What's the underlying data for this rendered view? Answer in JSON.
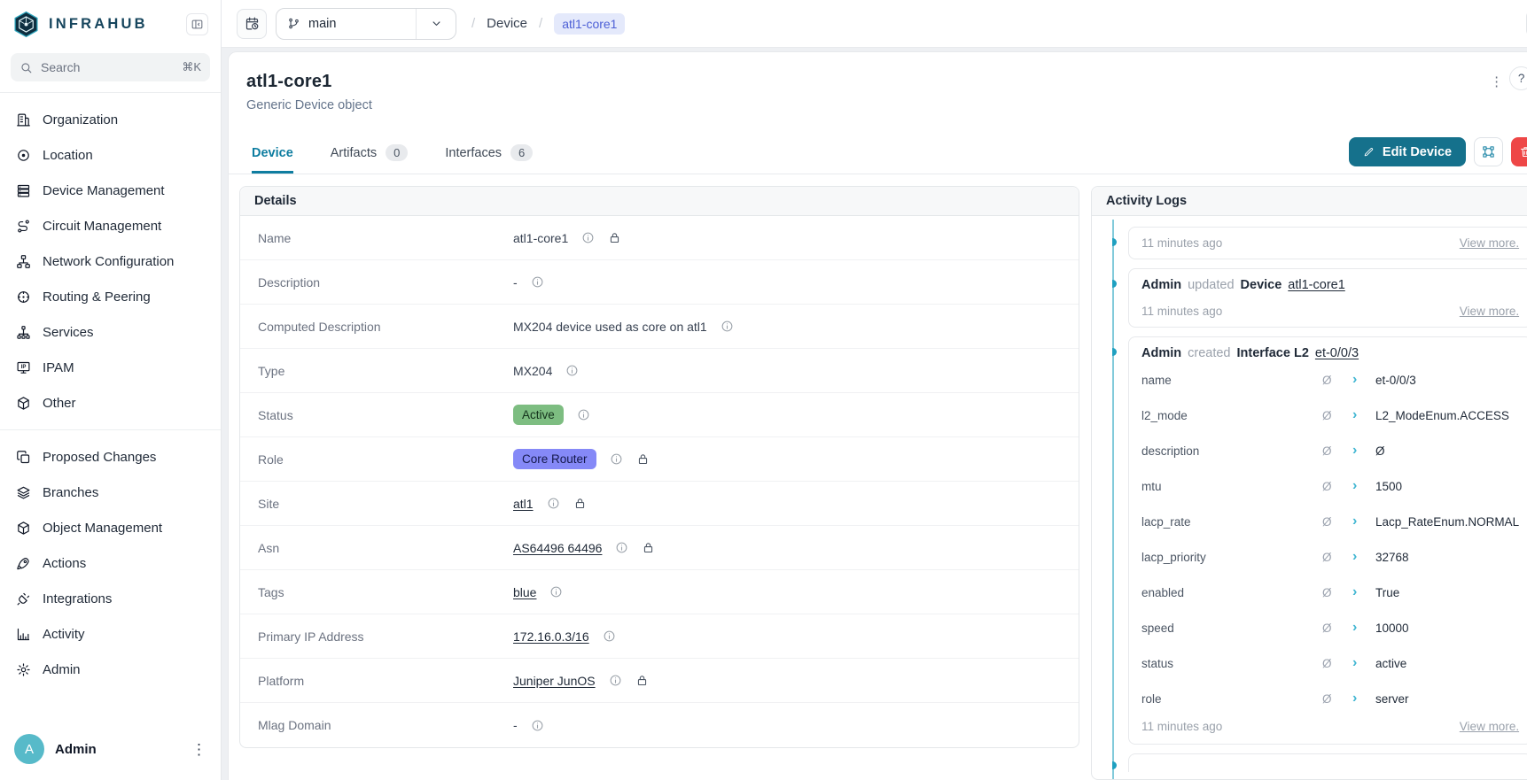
{
  "colors": {
    "brand_navy": "#17465e",
    "accent_teal": "#15718c",
    "tab_active": "#0e7da0",
    "timeline_line": "#82cada",
    "timeline_dot": "#1fa0c0",
    "chevron_teal": "#41b6d2",
    "badge_green": "#7dbd81",
    "badge_indigo": "#8589f7",
    "pill_bg": "#e4e9fb",
    "pill_text": "#4c5fd6",
    "delete_red": "#ee4747",
    "avatar_teal": "#57bac9"
  },
  "sidebar": {
    "logo_text": "INFRAHUB",
    "search": {
      "label": "Search",
      "shortcut": "⌘K"
    },
    "groups": [
      {
        "items": [
          {
            "icon": "building-icon",
            "label": "Organization"
          },
          {
            "icon": "location-icon",
            "label": "Location"
          },
          {
            "icon": "server-icon",
            "label": "Device Management"
          },
          {
            "icon": "route-icon",
            "label": "Circuit Management"
          },
          {
            "icon": "network-icon",
            "label": "Network Configuration"
          },
          {
            "icon": "globe-icon",
            "label": "Routing & Peering"
          },
          {
            "icon": "hierarchy-icon",
            "label": "Services"
          },
          {
            "icon": "ip-icon",
            "label": "IPAM"
          },
          {
            "icon": "cube-icon",
            "label": "Other"
          }
        ]
      },
      {
        "items": [
          {
            "icon": "copy-icon",
            "label": "Proposed Changes"
          },
          {
            "icon": "layers-icon",
            "label": "Branches"
          },
          {
            "icon": "box-icon",
            "label": "Object Management"
          },
          {
            "icon": "rocket-icon",
            "label": "Actions"
          },
          {
            "icon": "plug-icon",
            "label": "Integrations"
          },
          {
            "icon": "bar-chart-icon",
            "label": "Activity"
          },
          {
            "icon": "gear-icon",
            "label": "Admin"
          }
        ]
      }
    ],
    "user": {
      "initial": "A",
      "name": "Admin"
    }
  },
  "topbar": {
    "branch": "main",
    "breadcrumb": {
      "sep": "/",
      "items": [
        "Device",
        "atl1-core1"
      ]
    }
  },
  "page": {
    "title": "atl1-core1",
    "subtitle": "Generic Device object",
    "help_label": "?"
  },
  "tabs": [
    {
      "label": "Device",
      "active": true
    },
    {
      "label": "Artifacts",
      "badge": "0"
    },
    {
      "label": "Interfaces",
      "badge": "6"
    }
  ],
  "actions": {
    "edit_label": "Edit Device"
  },
  "details": {
    "title": "Details",
    "rows": [
      {
        "label": "Name",
        "value": "atl1-core1",
        "type": "text",
        "info": true,
        "lock": true
      },
      {
        "label": "Description",
        "value": "-",
        "type": "text",
        "info": true
      },
      {
        "label": "Computed Description",
        "value": "MX204 device used as core on atl1",
        "type": "text",
        "info": true
      },
      {
        "label": "Type",
        "value": "MX204",
        "type": "text",
        "info": true
      },
      {
        "label": "Status",
        "value": "Active",
        "type": "badge-green",
        "info": true
      },
      {
        "label": "Role",
        "value": "Core Router",
        "type": "badge-indigo",
        "info": true,
        "lock": true
      },
      {
        "label": "Site",
        "value": "atl1",
        "type": "link",
        "info": true,
        "lock": true
      },
      {
        "label": "Asn",
        "value": "AS64496 64496",
        "type": "link",
        "info": true,
        "lock": true
      },
      {
        "label": "Tags",
        "value": "blue",
        "type": "link",
        "info": true
      },
      {
        "label": "Primary IP Address",
        "value": "172.16.0.3/16",
        "type": "link",
        "info": true
      },
      {
        "label": "Platform",
        "value": "Juniper JunOS",
        "type": "link",
        "info": true,
        "lock": true
      },
      {
        "label": "Mlag Domain",
        "value": "-",
        "type": "text",
        "info": true
      }
    ]
  },
  "activity": {
    "title": "Activity Logs",
    "view_more": "View more.",
    "cards": [
      {
        "timestamp": "11 minutes ago"
      },
      {
        "actor": "Admin",
        "action": "updated",
        "object_type": "Device",
        "object_name": "atl1-core1",
        "timestamp": "11 minutes ago"
      },
      {
        "actor": "Admin",
        "action": "created",
        "object_type": "Interface L2",
        "object_name": "et-0/0/3",
        "timestamp": "11 minutes ago",
        "properties": [
          {
            "name": "name",
            "prev": "Ø",
            "value": "et-0/0/3"
          },
          {
            "name": "l2_mode",
            "prev": "Ø",
            "value": "L2_ModeEnum.ACCESS"
          },
          {
            "name": "description",
            "prev": "Ø",
            "value": "Ø"
          },
          {
            "name": "mtu",
            "prev": "Ø",
            "value": "1500"
          },
          {
            "name": "lacp_rate",
            "prev": "Ø",
            "value": "Lacp_RateEnum.NORMAL"
          },
          {
            "name": "lacp_priority",
            "prev": "Ø",
            "value": "32768"
          },
          {
            "name": "enabled",
            "prev": "Ø",
            "value": "True"
          },
          {
            "name": "speed",
            "prev": "Ø",
            "value": "10000"
          },
          {
            "name": "status",
            "prev": "Ø",
            "value": "active"
          },
          {
            "name": "role",
            "prev": "Ø",
            "value": "server"
          }
        ]
      }
    ]
  }
}
